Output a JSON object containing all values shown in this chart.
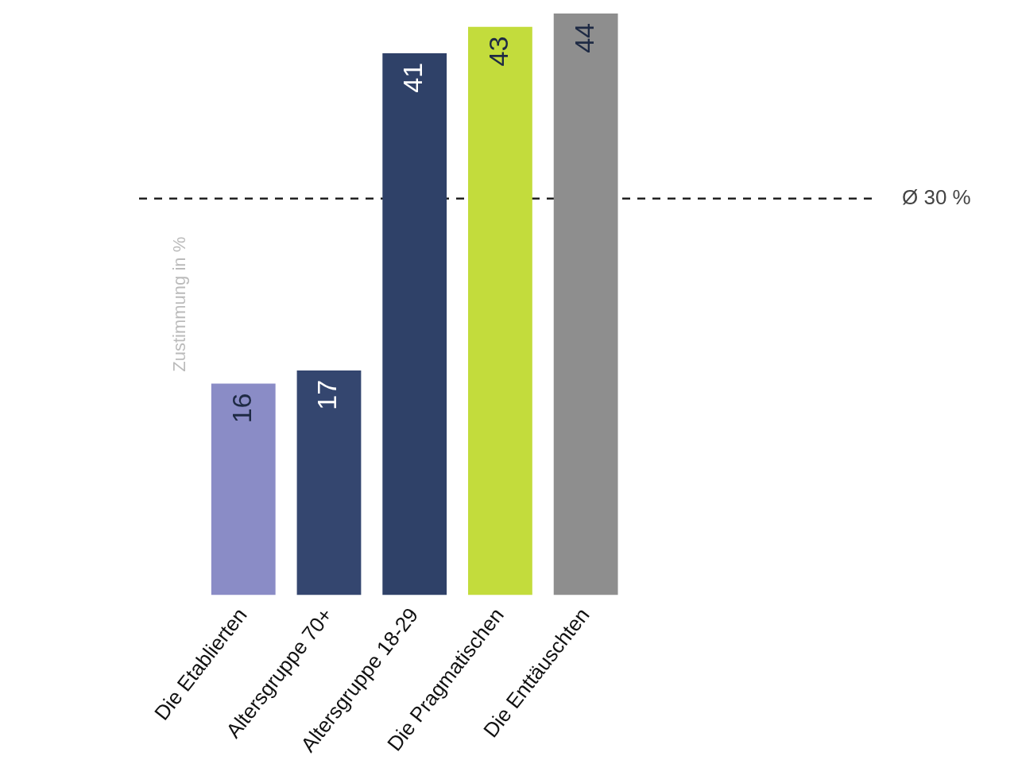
{
  "chart_data": {
    "type": "bar",
    "ylabel": "Zustimmung in %",
    "categories": [
      "Die Etablierten",
      "Altersgruppe 70+",
      "Altersgruppe 18-29",
      "Die Pragmatischen",
      "Die Enttäuschten"
    ],
    "values": [
      16,
      17,
      41,
      43,
      44
    ],
    "colors": [
      "#8a8cc6",
      "#34466f",
      "#2f4168",
      "#c3dc3c",
      "#8e8e8e"
    ],
    "data_labels": true,
    "ref_lines": [
      {
        "axis": "y",
        "value": 30,
        "label": "Ø 30 %",
        "color": "#222222",
        "line_style": "dashed"
      }
    ],
    "tick_labels": "x",
    "grid": false,
    "legend": false
  }
}
